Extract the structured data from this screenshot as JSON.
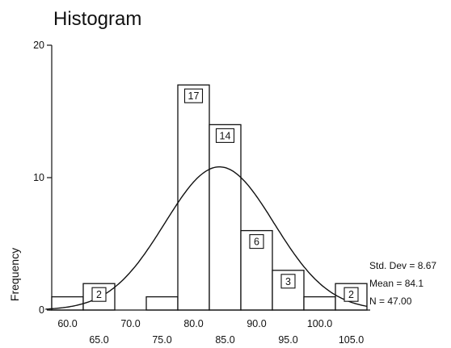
{
  "chart_data": {
    "type": "bar",
    "title": "Histogram",
    "xlabel": "",
    "ylabel": "Frequency",
    "ylim": [
      0,
      20
    ],
    "yticks": [
      0,
      10,
      20
    ],
    "xtick_labels_upper": [
      "60.0",
      "70.0",
      "80.0",
      "90.0",
      "100.0"
    ],
    "xtick_labels_lower": [
      "65.0",
      "75.0",
      "85.0",
      "95.0",
      "105.0"
    ],
    "bins": [
      {
        "x_start": 57.5,
        "x_end": 62.5,
        "value": 1,
        "label": ""
      },
      {
        "x_start": 62.5,
        "x_end": 67.5,
        "value": 2,
        "label": "2"
      },
      {
        "x_start": 67.5,
        "x_end": 72.5,
        "value": 0,
        "label": ""
      },
      {
        "x_start": 72.5,
        "x_end": 77.5,
        "value": 1,
        "label": ""
      },
      {
        "x_start": 77.5,
        "x_end": 82.5,
        "value": 17,
        "label": "17"
      },
      {
        "x_start": 82.5,
        "x_end": 87.5,
        "value": 14,
        "label": "14"
      },
      {
        "x_start": 87.5,
        "x_end": 92.5,
        "value": 6,
        "label": "6"
      },
      {
        "x_start": 92.5,
        "x_end": 97.5,
        "value": 3,
        "label": "3"
      },
      {
        "x_start": 97.5,
        "x_end": 102.5,
        "value": 1,
        "label": ""
      },
      {
        "x_start": 102.5,
        "x_end": 107.5,
        "value": 2,
        "label": "2"
      }
    ],
    "normal_curve": {
      "mean": 84.1,
      "std": 8.67,
      "n": 47,
      "bin_width": 5
    },
    "stats": {
      "std_dev": "Std. Dev = 8.67",
      "mean": "Mean = 84.1",
      "n": "N = 47.00"
    },
    "grid": false,
    "legend": "none"
  }
}
